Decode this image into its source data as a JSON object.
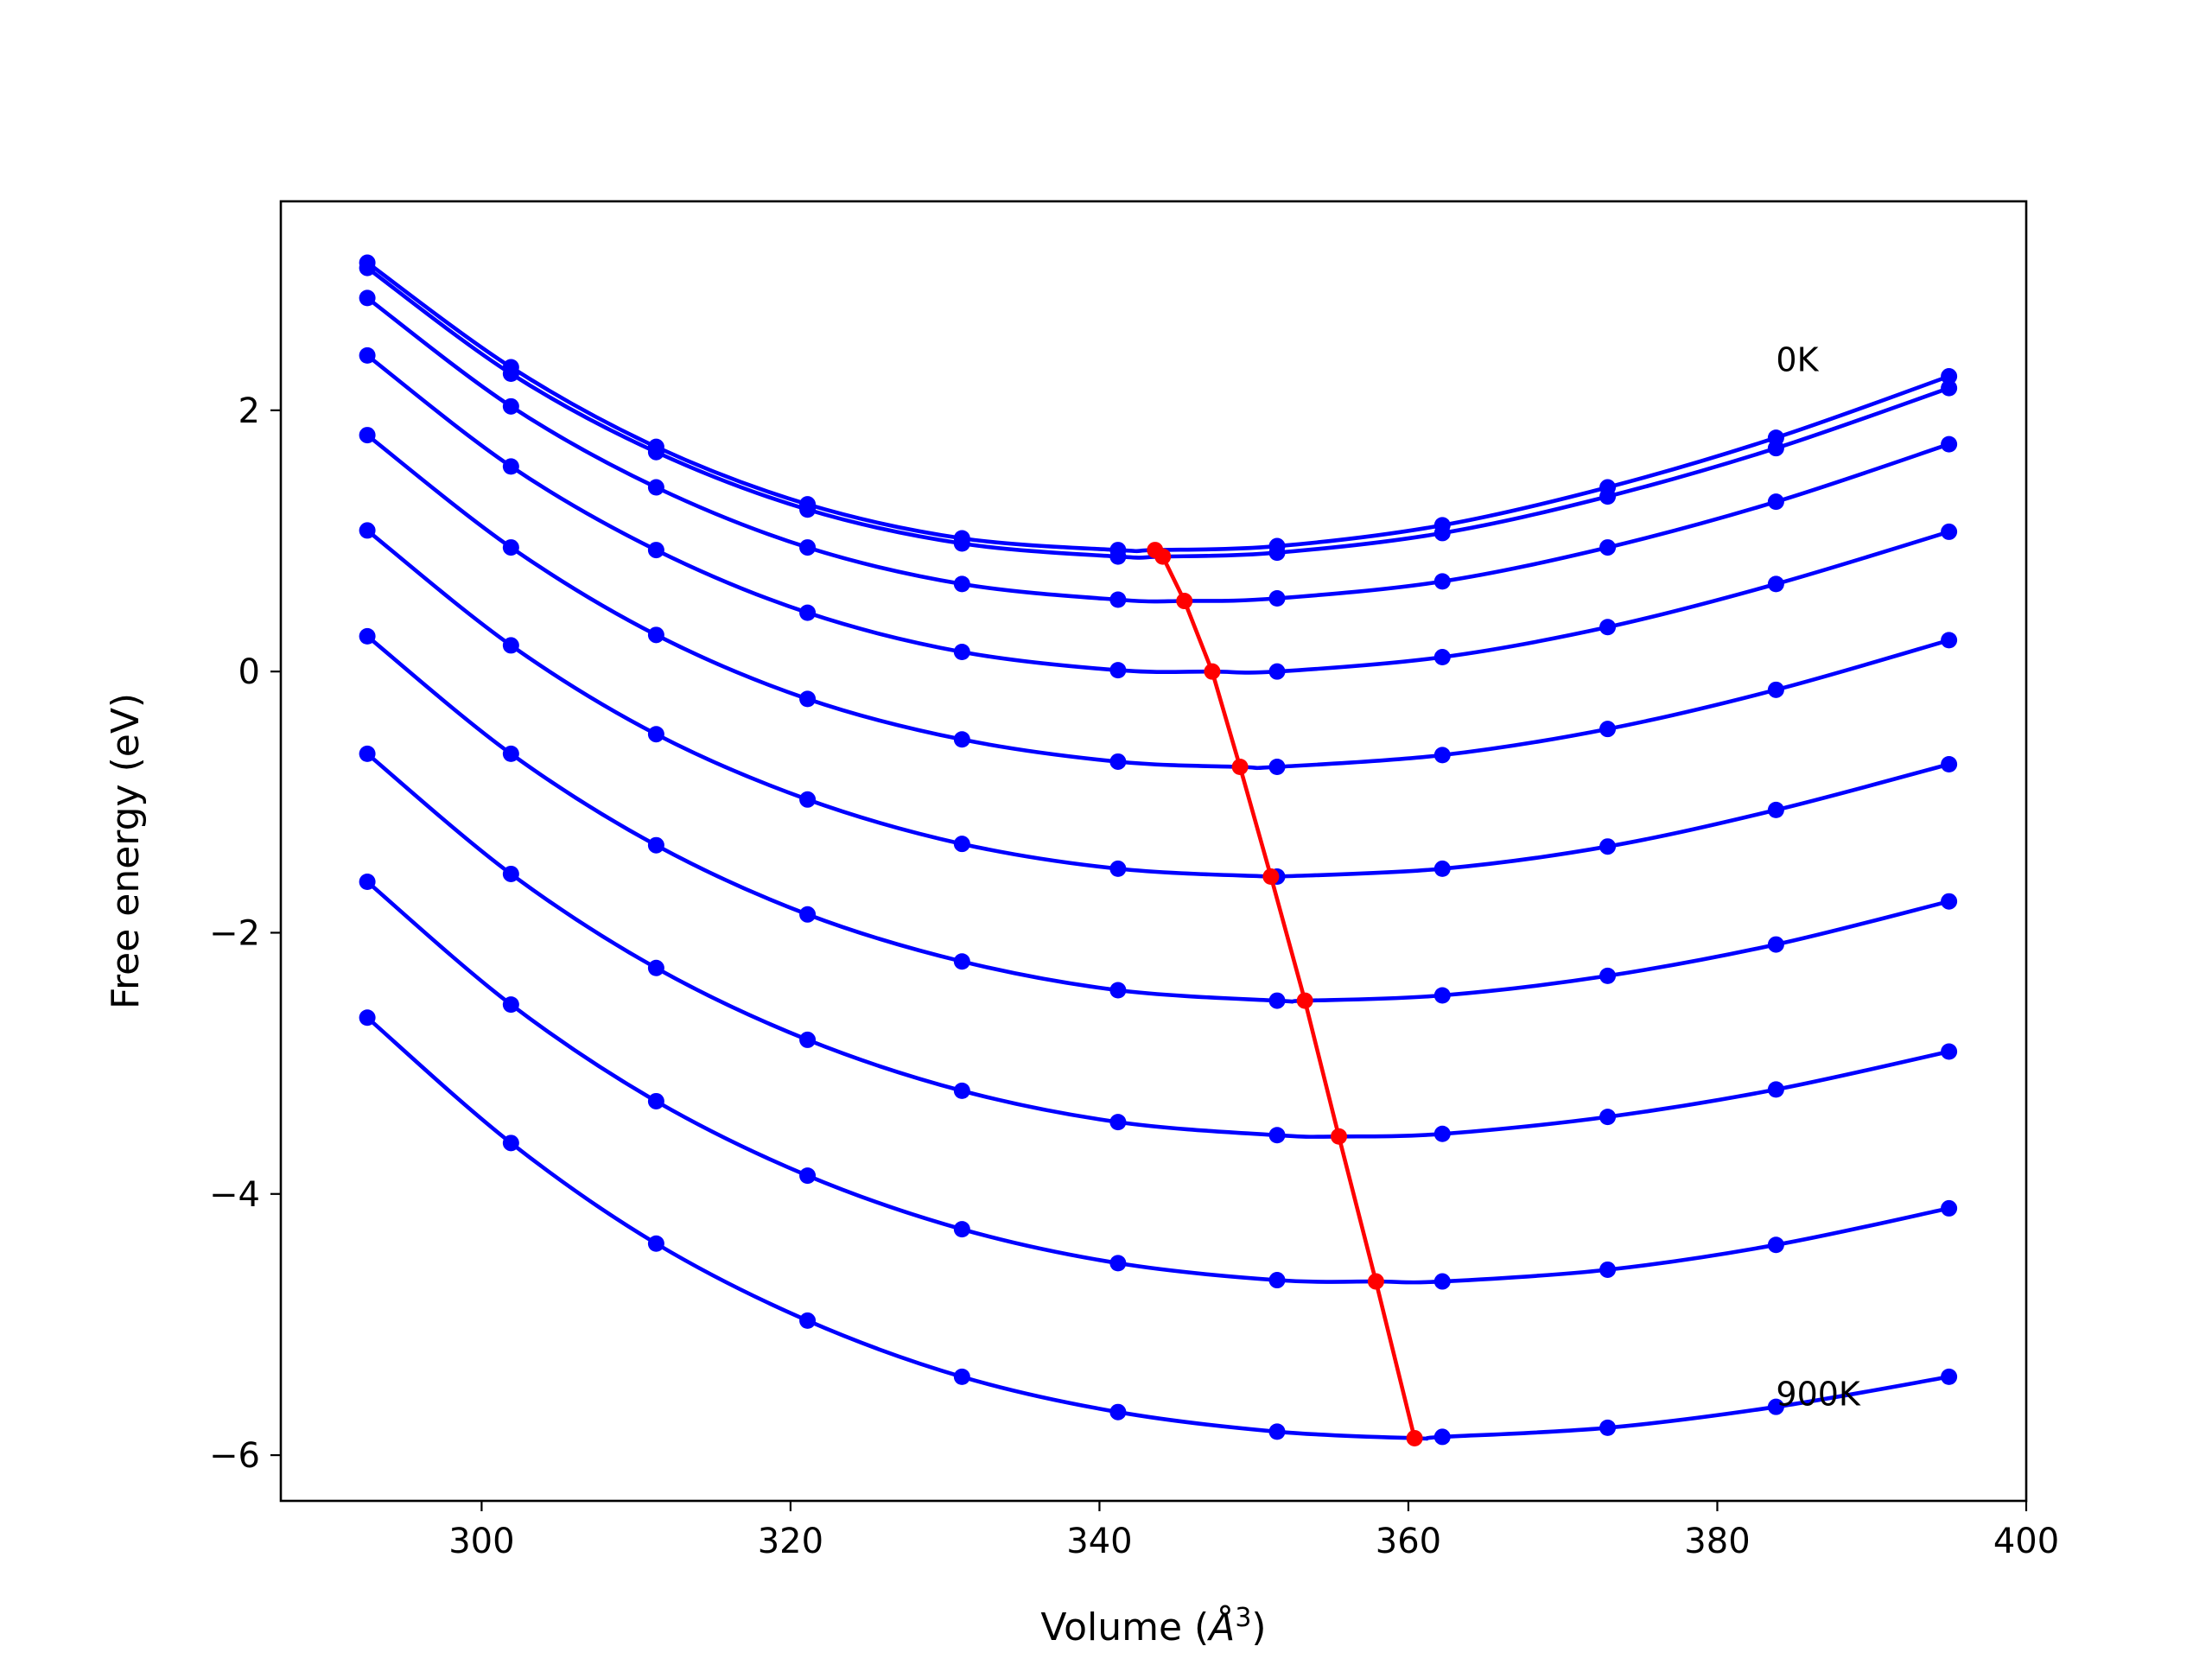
{
  "chart_data": {
    "type": "line",
    "title": "",
    "xlabel_prefix": "Volume (",
    "xlabel_unit": "Å",
    "xlabel_exp": "3",
    "xlabel_suffix": ")",
    "ylabel": "Free energy (eV)",
    "xlim": [
      287,
      400
    ],
    "ylim": [
      -6.35,
      3.6
    ],
    "xticks": [
      300,
      320,
      340,
      360,
      380,
      400
    ],
    "xtick_labels": [
      "300",
      "320",
      "340",
      "360",
      "380",
      "400"
    ],
    "yticks": [
      2,
      0,
      -2,
      -4,
      -6
    ],
    "ytick_labels": [
      "2",
      "0",
      "−2",
      "−4",
      "−6"
    ],
    "grid": false,
    "annotations": [
      {
        "text": "0K",
        "x": 383.8,
        "y": 2.3
      },
      {
        "text": "900K",
        "x": 383.8,
        "y": -5.62
      }
    ],
    "x": [
      292.6,
      301.9,
      311.3,
      321.1,
      331.1,
      341.2,
      351.5,
      362.2,
      372.9,
      383.8,
      395.0
    ],
    "series": [
      {
        "values": [
          3.13,
          2.33,
          1.72,
          1.28,
          1.02,
          0.93,
          0.96,
          1.12,
          1.41,
          1.79,
          2.26
        ],
        "min": [
          343.6,
          0.93
        ],
        "color": "#0000ff"
      },
      {
        "values": [
          3.09,
          2.28,
          1.68,
          1.24,
          0.98,
          0.88,
          0.91,
          1.06,
          1.34,
          1.71,
          2.17
        ],
        "min": [
          344.1,
          0.88
        ],
        "color": "#0000ff"
      },
      {
        "values": [
          2.86,
          2.03,
          1.41,
          0.95,
          0.67,
          0.55,
          0.56,
          0.69,
          0.95,
          1.3,
          1.74
        ],
        "min": [
          345.5,
          0.54
        ],
        "color": "#0000ff"
      },
      {
        "values": [
          2.42,
          1.57,
          0.93,
          0.45,
          0.15,
          0.01,
          0.0,
          0.11,
          0.34,
          0.67,
          1.07
        ],
        "min": [
          347.3,
          0.0
        ],
        "color": "#0000ff"
      },
      {
        "values": [
          1.81,
          0.95,
          0.28,
          -0.21,
          -0.52,
          -0.69,
          -0.73,
          -0.64,
          -0.44,
          -0.14,
          0.24
        ],
        "min": [
          349.1,
          -0.73
        ],
        "color": "#0000ff"
      },
      {
        "values": [
          1.08,
          0.2,
          -0.48,
          -0.98,
          -1.32,
          -1.51,
          -1.57,
          -1.51,
          -1.34,
          -1.06,
          -0.71
        ],
        "min": [
          351.1,
          -1.57
        ],
        "color": "#0000ff"
      },
      {
        "values": [
          0.27,
          -0.63,
          -1.33,
          -1.86,
          -2.22,
          -2.44,
          -2.52,
          -2.48,
          -2.33,
          -2.09,
          -1.76
        ],
        "min": [
          353.3,
          -2.52
        ],
        "color": "#0000ff"
      },
      {
        "values": [
          -0.63,
          -1.55,
          -2.27,
          -2.82,
          -3.21,
          -3.45,
          -3.55,
          -3.54,
          -3.41,
          -3.2,
          -2.91
        ],
        "min": [
          355.5,
          -3.56
        ],
        "color": "#0000ff"
      },
      {
        "values": [
          -1.61,
          -2.55,
          -3.29,
          -3.86,
          -4.27,
          -4.53,
          -4.66,
          -4.67,
          -4.58,
          -4.39,
          -4.11
        ],
        "min": [
          357.9,
          -4.67
        ],
        "color": "#0000ff"
      },
      {
        "values": [
          -2.65,
          -3.61,
          -4.38,
          -4.97,
          -5.4,
          -5.67,
          -5.82,
          -5.86,
          -5.79,
          -5.63,
          -5.4
        ],
        "min": [
          360.4,
          -5.87
        ],
        "color": "#0000ff"
      }
    ],
    "minimum_line": {
      "color": "#ff0000",
      "x": [
        343.6,
        344.1,
        345.5,
        347.3,
        349.1,
        351.1,
        353.3,
        355.5,
        357.9,
        360.4
      ],
      "y": [
        0.93,
        0.88,
        0.54,
        0.0,
        -0.73,
        -1.57,
        -2.52,
        -3.56,
        -4.67,
        -5.87
      ]
    }
  }
}
